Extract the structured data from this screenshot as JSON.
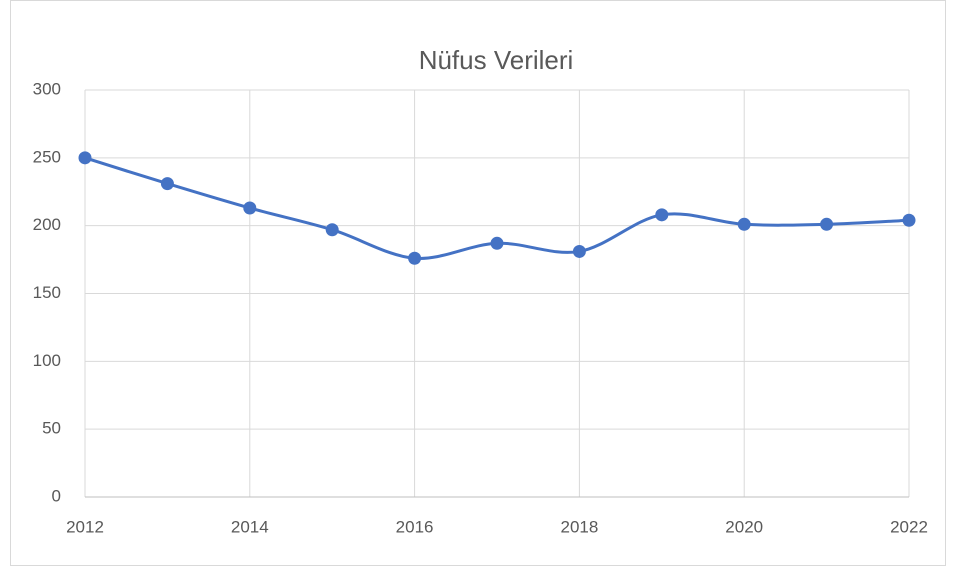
{
  "chart_data": {
    "type": "line",
    "title": "Nüfus Verileri",
    "x": [
      2012,
      2013,
      2014,
      2015,
      2016,
      2017,
      2018,
      2019,
      2020,
      2021,
      2022
    ],
    "series": [
      {
        "name": "Nüfus",
        "color": "#4472c4",
        "values": [
          250,
          231,
          213,
          197,
          176,
          187,
          181,
          208,
          201,
          201,
          204
        ]
      }
    ],
    "xlim": [
      2012,
      2022
    ],
    "xticks": [
      2012,
      2014,
      2016,
      2018,
      2020,
      2022
    ],
    "ylim": [
      0,
      300
    ],
    "yticks": [
      0,
      50,
      100,
      150,
      200,
      250,
      300
    ],
    "grid": true,
    "smooth": true
  }
}
